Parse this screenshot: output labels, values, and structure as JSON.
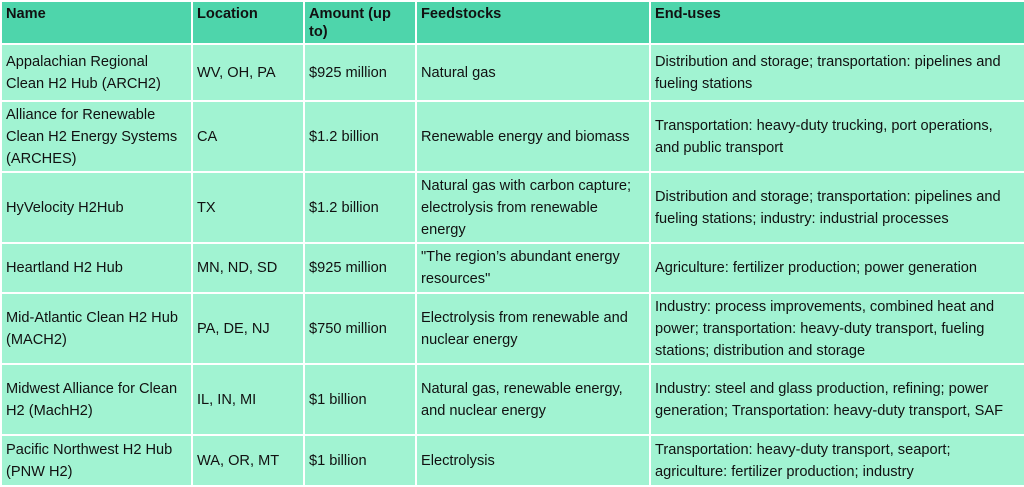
{
  "table": {
    "headers": [
      "Name",
      "Location",
      "Amount (up to)",
      "Feedstocks",
      "End-uses"
    ],
    "rows": [
      {
        "name": "Appalachian Regional Clean H2 Hub (ARCH2)",
        "location": "WV, OH, PA",
        "amount": "$925 million",
        "feedstocks": "Natural gas",
        "end_uses": "Distribution and storage; transportation: pipelines and fueling stations"
      },
      {
        "name": "Alliance for Renewable Clean H2 Energy Systems (ARCHES)",
        "location": "CA",
        "amount": "$1.2 billion",
        "feedstocks": "Renewable energy and biomass",
        "end_uses": "Transportation: heavy-duty trucking, port operations, and public transport"
      },
      {
        "name": "HyVelocity H2Hub",
        "location": "TX",
        "amount": "$1.2 billion",
        "feedstocks": "Natural gas with carbon capture; electrolysis from renewable energy",
        "end_uses": "Distribution and storage; transportation: pipelines and fueling stations; industry: industrial processes"
      },
      {
        "name": "Heartland H2 Hub",
        "location": "MN, ND, SD",
        "amount": "$925 million",
        "feedstocks": "\"The region’s abundant energy resources\"",
        "end_uses": "Agriculture: fertilizer production; power generation"
      },
      {
        "name": "Mid-Atlantic Clean H2 Hub (MACH2)",
        "location": "PA, DE, NJ",
        "amount": "$750 million",
        "feedstocks": "Electrolysis from renewable and nuclear energy",
        "end_uses": "Industry: process improvements, combined heat and power; transportation: heavy-duty transport, fueling stations; distribution and storage"
      },
      {
        "name": "Midwest Alliance for Clean H2 (MachH2)",
        "location": "IL, IN, MI",
        "amount": "$1 billion",
        "feedstocks": "Natural gas, renewable energy, and nuclear energy",
        "end_uses": "Industry: steel and glass production, refining; power generation; Transportation: heavy-duty transport, SAF"
      },
      {
        "name": "Pacific Northwest H2 Hub (PNW H2)",
        "location": "WA, OR, MT",
        "amount": "$1 billion",
        "feedstocks": "Electrolysis",
        "end_uses": "Transportation: heavy-duty transport, seaport; agriculture: fertilizer production; industry"
      }
    ]
  },
  "colors": {
    "header_bg": "#4ed5ab",
    "cell_bg": "#a1f3d2",
    "border": "#ffffff",
    "text": "#111111"
  }
}
